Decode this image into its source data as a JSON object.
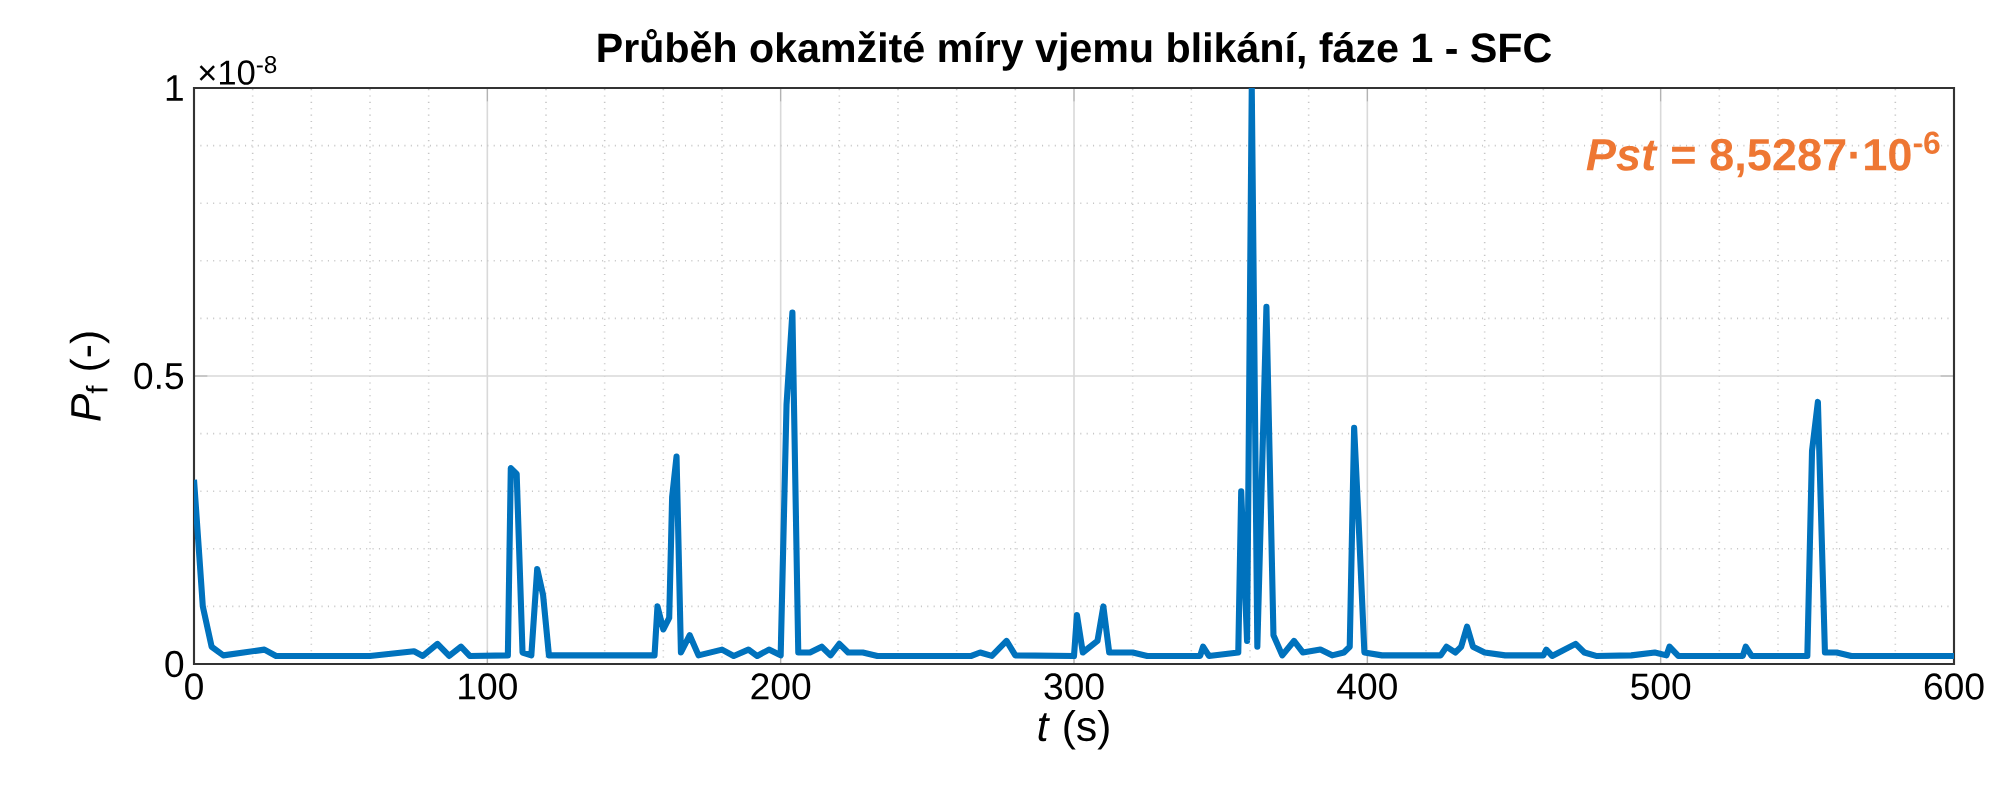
{
  "chart_data": {
    "type": "line",
    "title": "Průběh okamžité míry vjemu blikání, fáze 1 - SFC",
    "xlabel": "*t* (s)",
    "ylabel": "*P*$_{f}$ (-)",
    "annotations": [
      "×10$^{-8}$",
      "*Pst* = 8,5287·10$^{-6}$"
    ],
    "x": [
      0,
      3,
      6,
      10,
      24,
      28,
      60,
      75,
      78,
      83,
      87,
      91,
      94,
      107,
      108,
      110,
      112,
      115,
      117,
      119,
      121,
      157,
      158,
      160,
      162,
      163,
      164.5,
      166,
      169,
      172,
      180,
      184,
      189,
      192,
      196,
      200,
      202,
      204,
      206,
      210,
      214,
      217,
      220,
      223,
      228,
      233,
      265,
      268,
      272,
      277,
      280,
      300,
      301,
      303,
      308,
      310,
      312,
      320,
      325,
      343,
      344,
      346,
      356,
      357,
      359,
      360.6,
      362.5,
      365.6,
      368,
      371,
      375,
      378,
      384,
      388,
      392,
      394,
      395.5,
      397,
      399,
      405,
      425,
      427,
      430,
      432,
      434,
      436,
      440,
      447,
      460,
      461,
      463,
      471,
      474,
      478,
      490,
      498,
      502,
      503,
      506,
      528,
      529,
      531,
      550,
      551.6,
      553.6,
      556,
      560,
      565,
      600
    ],
    "series": [
      {
        "color": "#0072bd",
        "values": [
          0.32,
          0.1,
          0.03,
          0.015,
          0.025,
          0.014,
          0.014,
          0.022,
          0.014,
          0.035,
          0.014,
          0.03,
          0.014,
          0.015,
          0.34,
          0.33,
          0.02,
          0.015,
          0.165,
          0.12,
          0.015,
          0.015,
          0.1,
          0.06,
          0.08,
          0.29,
          0.36,
          0.02,
          0.05,
          0.015,
          0.025,
          0.014,
          0.025,
          0.014,
          0.025,
          0.015,
          0.45,
          0.61,
          0.02,
          0.02,
          0.03,
          0.015,
          0.035,
          0.02,
          0.02,
          0.014,
          0.014,
          0.02,
          0.014,
          0.04,
          0.015,
          0.014,
          0.085,
          0.02,
          0.04,
          0.1,
          0.02,
          0.02,
          0.014,
          0.014,
          0.03,
          0.014,
          0.02,
          0.3,
          0.04,
          1.0,
          0.03,
          0.62,
          0.05,
          0.015,
          0.04,
          0.02,
          0.025,
          0.015,
          0.02,
          0.03,
          0.41,
          0.25,
          0.02,
          0.015,
          0.015,
          0.03,
          0.02,
          0.03,
          0.065,
          0.03,
          0.02,
          0.015,
          0.015,
          0.025,
          0.014,
          0.035,
          0.02,
          0.014,
          0.015,
          0.02,
          0.015,
          0.03,
          0.014,
          0.014,
          0.03,
          0.014,
          0.014,
          0.37,
          0.455,
          0.02,
          0.02,
          0.014,
          0.014
        ]
      }
    ],
    "xlim": [
      0,
      600
    ],
    "ylim": [
      0,
      1
    ],
    "xticks": [
      0,
      100,
      200,
      300,
      400,
      500,
      600
    ],
    "yticks": [
      0,
      0.5,
      1
    ],
    "grid": true
  }
}
